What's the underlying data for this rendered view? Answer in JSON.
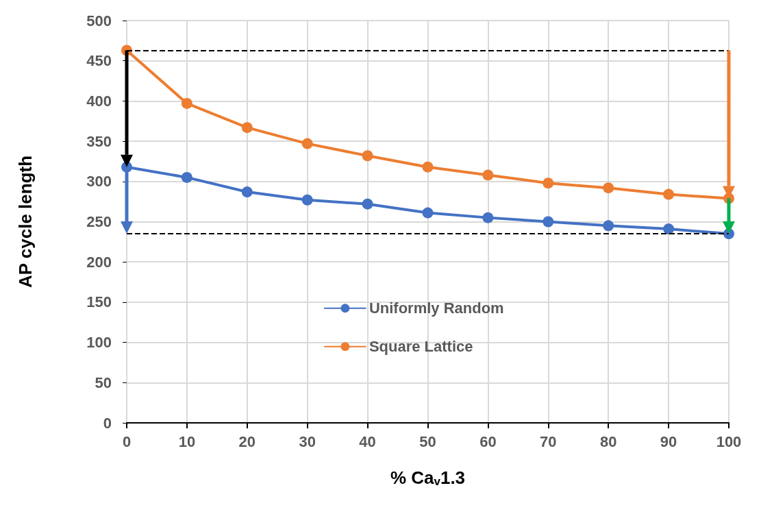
{
  "chart_data": {
    "type": "line",
    "xlabel": "% Ca$_{v}$1.3",
    "ylabel": "AP cycle length",
    "x": [
      0,
      10,
      20,
      30,
      40,
      50,
      60,
      70,
      80,
      90,
      100
    ],
    "series": [
      {
        "name": "Uniformly Random",
        "color": "#4472c4",
        "values": [
          318,
          305,
          287,
          277,
          272,
          261,
          255,
          250,
          245,
          241,
          235
        ]
      },
      {
        "name": "Square Lattice",
        "color": "#ed7d31",
        "values": [
          463,
          397,
          367,
          347,
          332,
          318,
          308,
          298,
          292,
          284,
          279
        ]
      }
    ],
    "xlim": [
      0,
      100
    ],
    "xticks": [
      0,
      10,
      20,
      30,
      40,
      50,
      60,
      70,
      80,
      90,
      100
    ],
    "ylim": [
      0,
      500
    ],
    "yticks": [
      0,
      50,
      100,
      150,
      200,
      250,
      300,
      350,
      400,
      450,
      500
    ],
    "ref_lines": [
      {
        "axis": "y",
        "value": 463,
        "color": "#000000",
        "line_style": "dashed"
      },
      {
        "axis": "y",
        "value": 235,
        "color": "#000000",
        "line_style": "dashed"
      }
    ],
    "grid": true,
    "legend": "center",
    "marker": "circle",
    "line_style": "solid"
  }
}
